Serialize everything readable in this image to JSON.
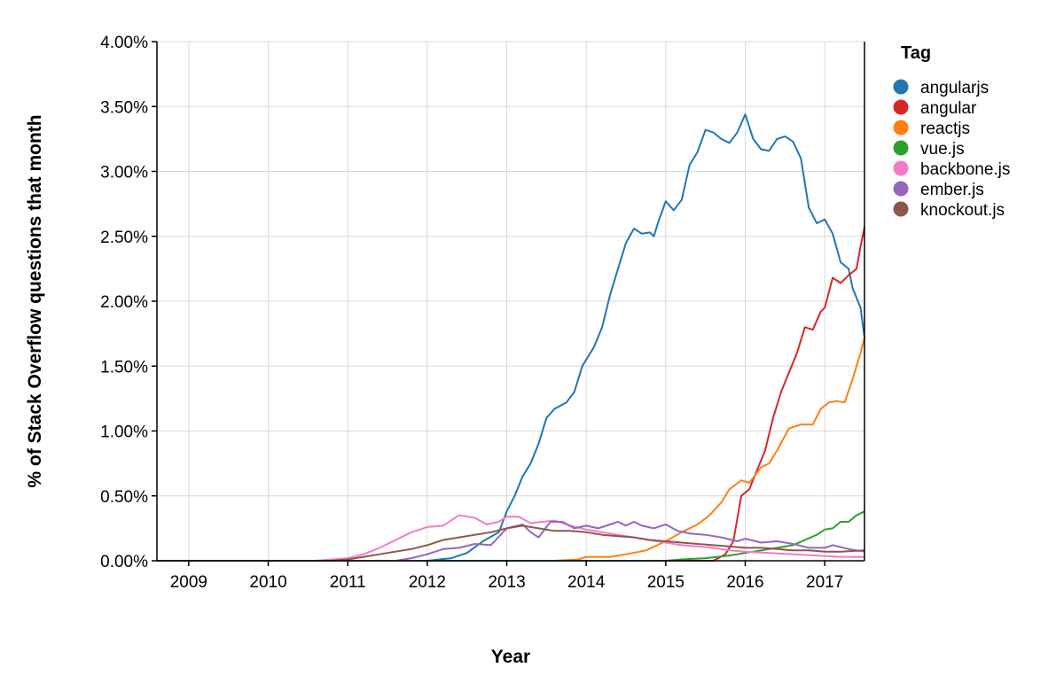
{
  "chart_data": {
    "type": "line",
    "xlabel": "Year",
    "ylabel": "% of Stack Overflow questions that month",
    "x_ticks": [
      "2009",
      "2010",
      "2011",
      "2012",
      "2013",
      "2014",
      "2015",
      "2016",
      "2017"
    ],
    "y_ticks": [
      "0.00%",
      "0.50%",
      "1.00%",
      "1.50%",
      "2.00%",
      "2.50%",
      "3.00%",
      "3.50%",
      "4.00%"
    ],
    "xlim": [
      2008.6,
      2017.5
    ],
    "ylim": [
      0,
      4
    ],
    "grid": true,
    "legend": {
      "title": "Tag",
      "position": "right"
    },
    "series": [
      {
        "name": "angularjs",
        "color": "#1f77b4",
        "points": [
          [
            2008.6,
            0
          ],
          [
            2012.0,
            0
          ],
          [
            2012.3,
            0.02
          ],
          [
            2012.5,
            0.06
          ],
          [
            2012.7,
            0.15
          ],
          [
            2012.9,
            0.22
          ],
          [
            2013.0,
            0.38
          ],
          [
            2013.1,
            0.5
          ],
          [
            2013.2,
            0.65
          ],
          [
            2013.3,
            0.75
          ],
          [
            2013.4,
            0.9
          ],
          [
            2013.5,
            1.1
          ],
          [
            2013.6,
            1.17
          ],
          [
            2013.75,
            1.22
          ],
          [
            2013.85,
            1.3
          ],
          [
            2013.95,
            1.5
          ],
          [
            2014.1,
            1.65
          ],
          [
            2014.2,
            1.8
          ],
          [
            2014.3,
            2.05
          ],
          [
            2014.4,
            2.25
          ],
          [
            2014.5,
            2.45
          ],
          [
            2014.6,
            2.56
          ],
          [
            2014.7,
            2.52
          ],
          [
            2014.8,
            2.53
          ],
          [
            2014.85,
            2.5
          ],
          [
            2014.9,
            2.6
          ],
          [
            2015.0,
            2.77
          ],
          [
            2015.1,
            2.7
          ],
          [
            2015.2,
            2.78
          ],
          [
            2015.3,
            3.05
          ],
          [
            2015.4,
            3.15
          ],
          [
            2015.5,
            3.32
          ],
          [
            2015.6,
            3.3
          ],
          [
            2015.7,
            3.25
          ],
          [
            2015.8,
            3.22
          ],
          [
            2015.9,
            3.3
          ],
          [
            2016.0,
            3.44
          ],
          [
            2016.1,
            3.25
          ],
          [
            2016.2,
            3.17
          ],
          [
            2016.3,
            3.16
          ],
          [
            2016.4,
            3.25
          ],
          [
            2016.5,
            3.27
          ],
          [
            2016.6,
            3.23
          ],
          [
            2016.7,
            3.1
          ],
          [
            2016.8,
            2.72
          ],
          [
            2016.9,
            2.6
          ],
          [
            2017.0,
            2.63
          ],
          [
            2017.1,
            2.52
          ],
          [
            2017.2,
            2.3
          ],
          [
            2017.3,
            2.25
          ],
          [
            2017.35,
            2.1
          ],
          [
            2017.45,
            1.95
          ],
          [
            2017.5,
            1.72
          ]
        ]
      },
      {
        "name": "angular",
        "color": "#d62728",
        "points": [
          [
            2008.6,
            0
          ],
          [
            2015.6,
            0
          ],
          [
            2015.75,
            0.05
          ],
          [
            2015.85,
            0.15
          ],
          [
            2015.95,
            0.5
          ],
          [
            2016.05,
            0.55
          ],
          [
            2016.15,
            0.7
          ],
          [
            2016.25,
            0.85
          ],
          [
            2016.35,
            1.1
          ],
          [
            2016.45,
            1.3
          ],
          [
            2016.55,
            1.45
          ],
          [
            2016.65,
            1.6
          ],
          [
            2016.75,
            1.8
          ],
          [
            2016.85,
            1.78
          ],
          [
            2016.95,
            1.92
          ],
          [
            2017.0,
            1.95
          ],
          [
            2017.1,
            2.18
          ],
          [
            2017.2,
            2.14
          ],
          [
            2017.3,
            2.2
          ],
          [
            2017.4,
            2.25
          ],
          [
            2017.45,
            2.42
          ],
          [
            2017.5,
            2.57
          ]
        ]
      },
      {
        "name": "reactjs",
        "color": "#ff7f0e",
        "points": [
          [
            2008.6,
            0
          ],
          [
            2013.6,
            0
          ],
          [
            2013.9,
            0.01
          ],
          [
            2014.0,
            0.03
          ],
          [
            2014.3,
            0.03
          ],
          [
            2014.5,
            0.05
          ],
          [
            2014.75,
            0.08
          ],
          [
            2015.0,
            0.15
          ],
          [
            2015.2,
            0.22
          ],
          [
            2015.4,
            0.28
          ],
          [
            2015.55,
            0.35
          ],
          [
            2015.7,
            0.45
          ],
          [
            2015.8,
            0.55
          ],
          [
            2015.95,
            0.62
          ],
          [
            2016.05,
            0.6
          ],
          [
            2016.2,
            0.72
          ],
          [
            2016.3,
            0.75
          ],
          [
            2016.4,
            0.85
          ],
          [
            2016.55,
            1.02
          ],
          [
            2016.7,
            1.05
          ],
          [
            2016.85,
            1.05
          ],
          [
            2016.95,
            1.17
          ],
          [
            2017.05,
            1.22
          ],
          [
            2017.15,
            1.23
          ],
          [
            2017.25,
            1.22
          ],
          [
            2017.35,
            1.4
          ],
          [
            2017.45,
            1.6
          ],
          [
            2017.5,
            1.72
          ]
        ]
      },
      {
        "name": "vue.js",
        "color": "#2ca02c",
        "points": [
          [
            2008.6,
            0
          ],
          [
            2015.0,
            0
          ],
          [
            2015.2,
            0.01
          ],
          [
            2015.5,
            0.02
          ],
          [
            2015.8,
            0.04
          ],
          [
            2016.0,
            0.06
          ],
          [
            2016.2,
            0.08
          ],
          [
            2016.4,
            0.1
          ],
          [
            2016.6,
            0.12
          ],
          [
            2016.75,
            0.16
          ],
          [
            2016.9,
            0.2
          ],
          [
            2017.0,
            0.24
          ],
          [
            2017.1,
            0.25
          ],
          [
            2017.2,
            0.3
          ],
          [
            2017.3,
            0.3
          ],
          [
            2017.4,
            0.35
          ],
          [
            2017.5,
            0.38
          ]
        ]
      },
      {
        "name": "backbone.js",
        "color": "#f37bc5",
        "points": [
          [
            2008.6,
            0
          ],
          [
            2010.6,
            0
          ],
          [
            2010.8,
            0.01
          ],
          [
            2011.0,
            0.02
          ],
          [
            2011.2,
            0.05
          ],
          [
            2011.4,
            0.1
          ],
          [
            2011.6,
            0.16
          ],
          [
            2011.8,
            0.22
          ],
          [
            2012.0,
            0.26
          ],
          [
            2012.2,
            0.27
          ],
          [
            2012.4,
            0.35
          ],
          [
            2012.6,
            0.33
          ],
          [
            2012.75,
            0.28
          ],
          [
            2012.9,
            0.3
          ],
          [
            2013.0,
            0.34
          ],
          [
            2013.15,
            0.34
          ],
          [
            2013.3,
            0.29
          ],
          [
            2013.45,
            0.3
          ],
          [
            2013.6,
            0.31
          ],
          [
            2013.8,
            0.27
          ],
          [
            2014.0,
            0.24
          ],
          [
            2014.2,
            0.22
          ],
          [
            2014.4,
            0.2
          ],
          [
            2014.6,
            0.18
          ],
          [
            2014.8,
            0.16
          ],
          [
            2015.0,
            0.14
          ],
          [
            2015.2,
            0.12
          ],
          [
            2015.4,
            0.11
          ],
          [
            2015.6,
            0.1
          ],
          [
            2015.8,
            0.08
          ],
          [
            2016.0,
            0.07
          ],
          [
            2016.3,
            0.06
          ],
          [
            2016.6,
            0.05
          ],
          [
            2016.9,
            0.04
          ],
          [
            2017.2,
            0.03
          ],
          [
            2017.5,
            0.03
          ]
        ]
      },
      {
        "name": "ember.js",
        "color": "#9467bd",
        "points": [
          [
            2008.6,
            0
          ],
          [
            2011.6,
            0
          ],
          [
            2011.8,
            0.02
          ],
          [
            2012.0,
            0.05
          ],
          [
            2012.2,
            0.09
          ],
          [
            2012.4,
            0.1
          ],
          [
            2012.6,
            0.13
          ],
          [
            2012.8,
            0.12
          ],
          [
            2013.0,
            0.25
          ],
          [
            2013.2,
            0.28
          ],
          [
            2013.3,
            0.22
          ],
          [
            2013.4,
            0.18
          ],
          [
            2013.55,
            0.3
          ],
          [
            2013.7,
            0.3
          ],
          [
            2013.85,
            0.25
          ],
          [
            2014.0,
            0.27
          ],
          [
            2014.15,
            0.25
          ],
          [
            2014.3,
            0.28
          ],
          [
            2014.4,
            0.3
          ],
          [
            2014.5,
            0.27
          ],
          [
            2014.6,
            0.3
          ],
          [
            2014.7,
            0.27
          ],
          [
            2014.85,
            0.25
          ],
          [
            2015.0,
            0.28
          ],
          [
            2015.15,
            0.23
          ],
          [
            2015.3,
            0.21
          ],
          [
            2015.5,
            0.2
          ],
          [
            2015.7,
            0.18
          ],
          [
            2015.9,
            0.15
          ],
          [
            2016.0,
            0.17
          ],
          [
            2016.2,
            0.14
          ],
          [
            2016.4,
            0.15
          ],
          [
            2016.6,
            0.13
          ],
          [
            2016.8,
            0.1
          ],
          [
            2017.0,
            0.1
          ],
          [
            2017.1,
            0.12
          ],
          [
            2017.3,
            0.09
          ],
          [
            2017.5,
            0.07
          ]
        ]
      },
      {
        "name": "knockout.js",
        "color": "#8c564b",
        "points": [
          [
            2008.6,
            0
          ],
          [
            2010.8,
            0
          ],
          [
            2011.0,
            0.01
          ],
          [
            2011.2,
            0.03
          ],
          [
            2011.4,
            0.05
          ],
          [
            2011.6,
            0.07
          ],
          [
            2011.8,
            0.09
          ],
          [
            2012.0,
            0.12
          ],
          [
            2012.2,
            0.16
          ],
          [
            2012.4,
            0.18
          ],
          [
            2012.6,
            0.2
          ],
          [
            2012.8,
            0.22
          ],
          [
            2013.0,
            0.25
          ],
          [
            2013.2,
            0.27
          ],
          [
            2013.4,
            0.25
          ],
          [
            2013.6,
            0.23
          ],
          [
            2013.8,
            0.23
          ],
          [
            2014.0,
            0.22
          ],
          [
            2014.2,
            0.2
          ],
          [
            2014.4,
            0.19
          ],
          [
            2014.6,
            0.18
          ],
          [
            2014.8,
            0.16
          ],
          [
            2015.0,
            0.15
          ],
          [
            2015.2,
            0.14
          ],
          [
            2015.4,
            0.13
          ],
          [
            2015.6,
            0.12
          ],
          [
            2015.8,
            0.11
          ],
          [
            2016.0,
            0.1
          ],
          [
            2016.2,
            0.1
          ],
          [
            2016.4,
            0.09
          ],
          [
            2016.6,
            0.08
          ],
          [
            2016.8,
            0.08
          ],
          [
            2017.0,
            0.07
          ],
          [
            2017.2,
            0.07
          ],
          [
            2017.5,
            0.08
          ]
        ]
      }
    ]
  }
}
